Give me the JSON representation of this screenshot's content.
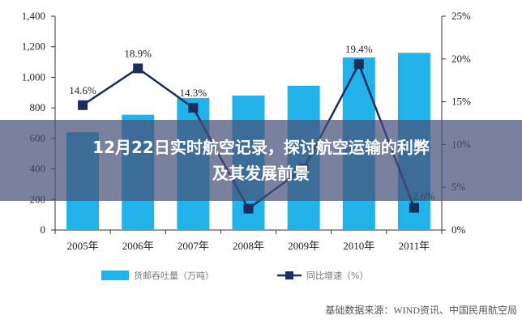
{
  "chart_data": {
    "type": "bar+line",
    "categories": [
      "2005年",
      "2006年",
      "2007年",
      "2008年",
      "2009年",
      "2010年",
      "2011年"
    ],
    "y_left": {
      "ticks": [
        "0",
        "200",
        "400",
        "600",
        "800",
        "1,000",
        "1,200",
        "1,400"
      ],
      "ylim": [
        0,
        1400
      ]
    },
    "y_right": {
      "ticks": [
        "0%",
        "5%",
        "10%",
        "15%",
        "20%",
        "25%"
      ],
      "ylim": [
        0,
        25
      ]
    },
    "series": [
      {
        "name": "货邮吞吐量（万吨）",
        "kind": "bar",
        "axis": "left",
        "color": "#20b2e8",
        "values": [
          640,
          755,
          865,
          880,
          945,
          1130,
          1160
        ]
      },
      {
        "name": "同比增速（%）",
        "kind": "line",
        "axis": "right",
        "color": "#1b2d5e",
        "values": [
          14.6,
          18.9,
          14.3,
          2.5,
          7.2,
          19.4,
          2.6
        ]
      }
    ],
    "data_labels": [
      "14.6%",
      "18.9%",
      "14.3%",
      "",
      "",
      "19.4%",
      "2.6%"
    ],
    "legend_position": "bottom",
    "grid": false
  },
  "source_note": "基础数据来源：WIND资讯、中国民用航空局",
  "overlay_title": "12月22日实时航空记录，探讨航空运输的利弊及其发展前景"
}
